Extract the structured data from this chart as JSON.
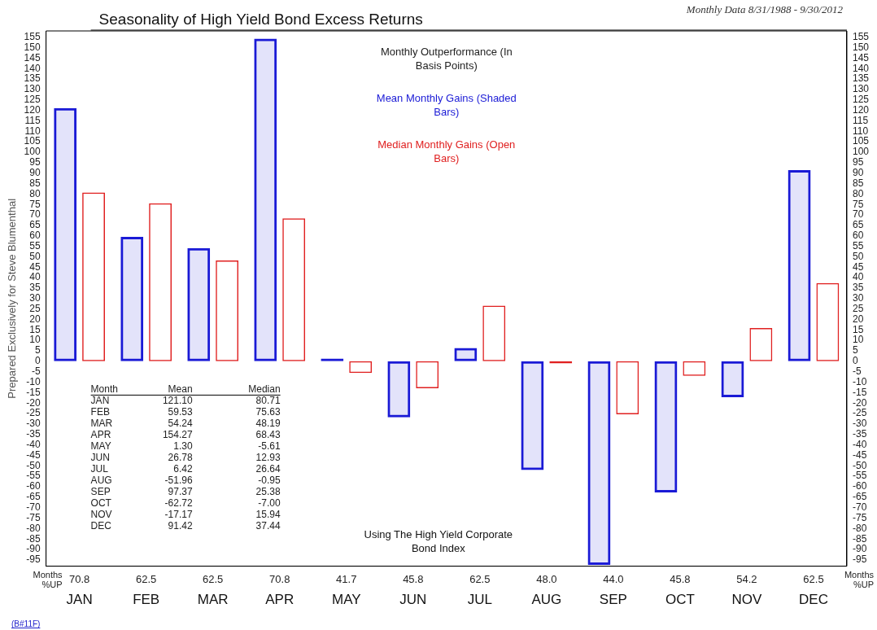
{
  "chart_data": {
    "type": "bar",
    "title": "Seasonality of High Yield Bond Excess Returns",
    "ylabel": "Prepared Exclusively for Steve Blumenthal",
    "legend_title": "Monthly Outperformance (In Basis Points)",
    "legend": "top",
    "categories": [
      "JAN",
      "FEB",
      "MAR",
      "APR",
      "MAY",
      "JUN",
      "JUL",
      "AUG",
      "SEP",
      "OCT",
      "NOV",
      "DEC"
    ],
    "series": [
      {
        "name": "Mean Monthly Gains (Shaded Bars)",
        "color": "#1a1ad6",
        "values": [
          121.1,
          59.5,
          54.2,
          154.3,
          1.3,
          -26.8,
          6.4,
          -52.0,
          -97.4,
          -62.7,
          -17.2,
          91.4
        ]
      },
      {
        "name": "Median Monthly Gains (Open Bars)",
        "color": "#e02020",
        "values": [
          80.7,
          75.6,
          48.2,
          68.4,
          -5.6,
          -12.9,
          26.6,
          -1.0,
          -25.4,
          -7.0,
          15.9,
          37.4
        ]
      }
    ],
    "ylim": [
      -98,
      158
    ],
    "yticks": [
      -95,
      -90,
      -85,
      -80,
      -75,
      -70,
      -65,
      -60,
      -55,
      -50,
      -45,
      -40,
      -35,
      -30,
      -25,
      -20,
      -15,
      -10,
      -5,
      0,
      5,
      10,
      15,
      20,
      25,
      30,
      35,
      40,
      45,
      50,
      55,
      60,
      65,
      70,
      75,
      80,
      85,
      90,
      95,
      100,
      105,
      110,
      115,
      120,
      125,
      130,
      135,
      140,
      145,
      150,
      155
    ],
    "y2lim": [
      -98,
      158
    ],
    "y2ticks": [
      -95,
      -90,
      -85,
      -80,
      -75,
      -70,
      -65,
      -60,
      -55,
      -50,
      -45,
      -40,
      -35,
      -30,
      -25,
      -20,
      -15,
      -10,
      -5,
      0,
      5,
      10,
      15,
      20,
      25,
      30,
      35,
      40,
      45,
      50,
      55,
      60,
      65,
      70,
      75,
      80,
      85,
      90,
      95,
      100,
      105,
      110,
      115,
      120,
      125,
      130,
      135,
      140,
      145,
      150,
      155
    ],
    "annotations": [
      "Monthly Data 8/31/1988 - 9/30/2012",
      "Using The High Yield Corporate Bond Index",
      "(B#11F)",
      "Months %UP",
      "Months %UP",
      "Month",
      "Mean",
      "Median",
      "70.8",
      "62.5",
      "62.5",
      "70.8",
      "41.7",
      "45.8",
      "62.5",
      "48.0",
      "44.0",
      "45.8",
      "54.2",
      "62.5",
      "121.10",
      "59.53",
      "54.24",
      "154.27",
      "1.30",
      "26.78",
      "6.42",
      "-51.96",
      "97.37",
      "-62.72",
      "-17.17",
      "91.42",
      "80.71",
      "75.63",
      "48.19",
      "68.43",
      "-5.61",
      "12.93",
      "26.64",
      "-0.95",
      "25.38",
      "-7.00",
      "15.94",
      "37.44"
    ]
  }
}
